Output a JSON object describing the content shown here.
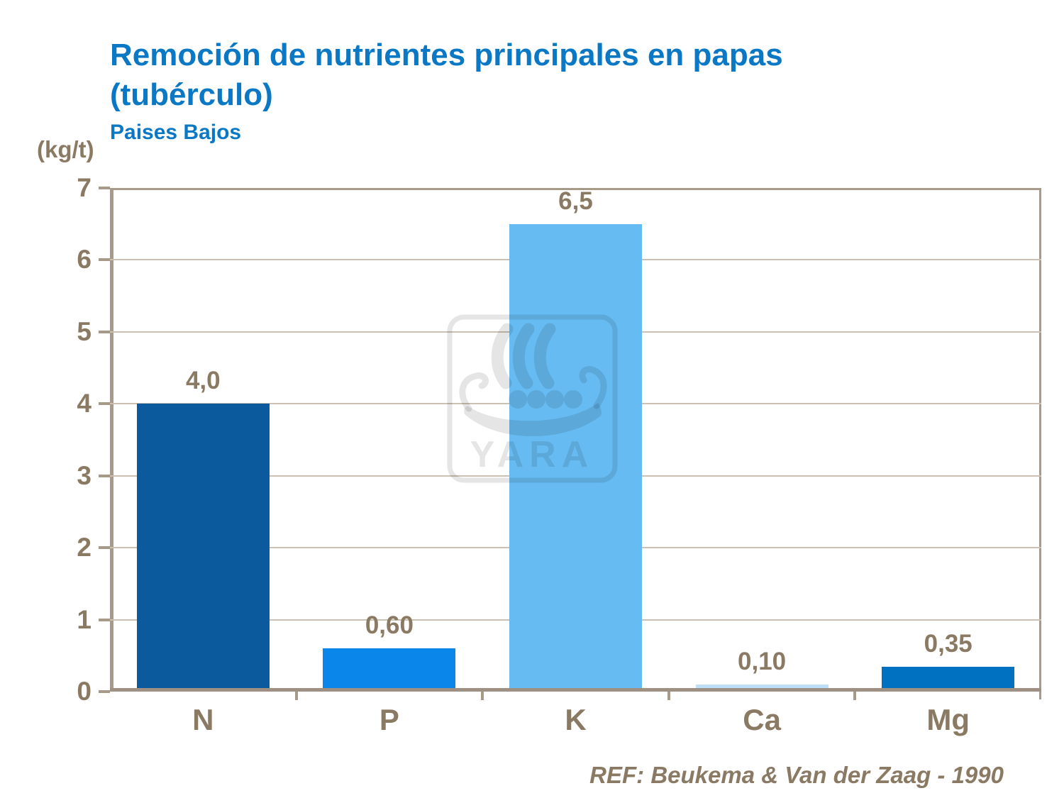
{
  "slide": {
    "title_line1": "Remoción de nutrientes principales en papas",
    "title_line2": "(tubérculo)",
    "subtitle": "Paises Bajos",
    "y_unit_label": "(kg/t)",
    "reference": "REF: Beukema & Van der Zaag - 1990"
  },
  "watermark": {
    "brand_text": "YARA",
    "icon": "viking-ship-logo"
  },
  "colors": {
    "title_blue": "#0B78C5",
    "text_brown": "#8A7A63",
    "axis_line": "#A79A89",
    "axis_bottom": "#9E9082",
    "gridline": "#CBC0B1",
    "watermark": "rgba(0,0,0,0.10)"
  },
  "chart_data": {
    "type": "bar",
    "categories": [
      "N",
      "P",
      "K",
      "Ca",
      "Mg"
    ],
    "values": [
      4.0,
      0.6,
      6.5,
      0.1,
      0.35
    ],
    "value_labels": [
      "4,0",
      "0,60",
      "6,5",
      "0,10",
      "0,35"
    ],
    "bar_colors": [
      "#0B5A9D",
      "#0A86EA",
      "#66BBF2",
      "#BDDFF7",
      "#0070C0"
    ],
    "title": "Remoción de nutrientes principales en papas (tubérculo)",
    "subtitle": "Paises Bajos",
    "xlabel": "",
    "ylabel": "(kg/t)",
    "ylim": [
      0,
      7
    ],
    "yticks": [
      0,
      1,
      2,
      3,
      4,
      5,
      6,
      7
    ],
    "grid": true,
    "legend": false
  }
}
